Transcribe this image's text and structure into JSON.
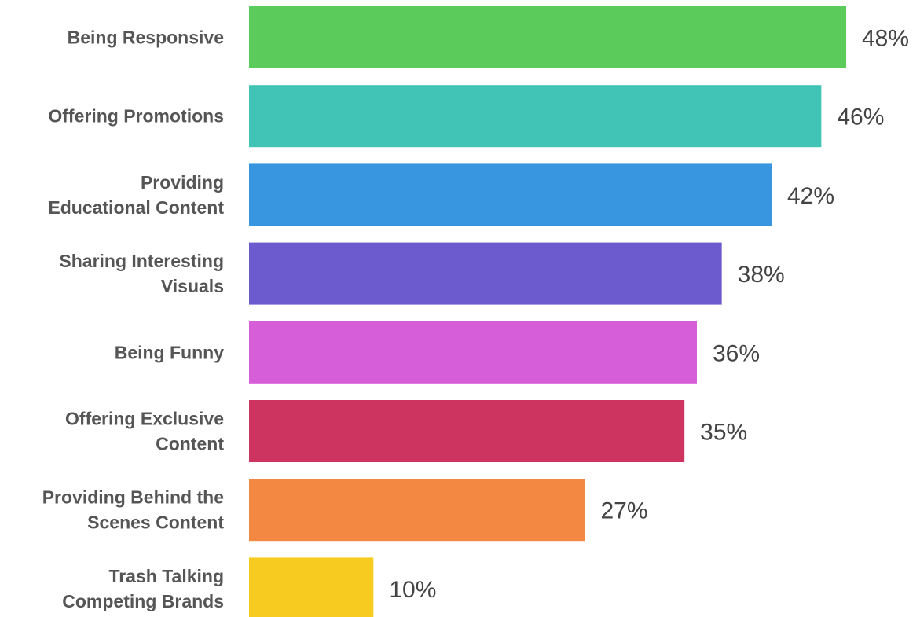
{
  "chart_data": {
    "type": "bar",
    "orientation": "horizontal",
    "categories": [
      "Being Responsive",
      "Offering Promotions",
      "Providing Educational Content",
      "Sharing Interesting Visuals",
      "Being Funny",
      "Offering Exclusive Content",
      "Providing Behind the Scenes Content",
      "Trash Talking Competing Brands"
    ],
    "category_label_lines": [
      [
        "Being Responsive"
      ],
      [
        "Offering Promotions"
      ],
      [
        "Providing",
        "Educational Content"
      ],
      [
        "Sharing Interesting",
        "Visuals"
      ],
      [
        "Being Funny"
      ],
      [
        "Offering Exclusive",
        "Content"
      ],
      [
        "Providing Behind the",
        "Scenes Content"
      ],
      [
        "Trash Talking",
        "Competing Brands"
      ]
    ],
    "values": [
      48,
      46,
      42,
      38,
      36,
      35,
      27,
      10
    ],
    "value_labels": [
      "48%",
      "46%",
      "42%",
      "38%",
      "36%",
      "35%",
      "27%",
      "10%"
    ],
    "colors": [
      "#5bcb5c",
      "#41c4b6",
      "#3895e0",
      "#6b5bce",
      "#d75ed9",
      "#cd3460",
      "#f28841",
      "#f8cb20"
    ],
    "title": "",
    "xlabel": "",
    "ylabel": "",
    "unit": "%",
    "xlim": [
      0,
      48
    ],
    "grid": false,
    "legend": "none"
  }
}
